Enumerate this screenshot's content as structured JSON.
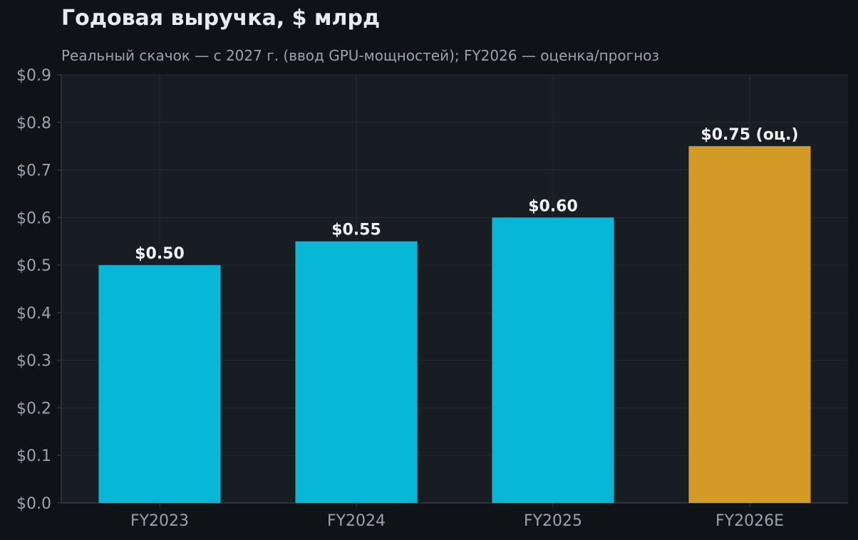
{
  "chart_data": {
    "type": "bar",
    "title": "Годовая выручка, $ млрд",
    "subtitle": "Реальный скачок — с 2027 г. (ввод GPU-мощностей); FY2026 — оценка/прогноз",
    "xlabel": "",
    "ylabel": "",
    "categories": [
      "FY2023",
      "FY2024",
      "FY2025",
      "FY2026E"
    ],
    "values": [
      0.5,
      0.55,
      0.6,
      0.75
    ],
    "value_labels": [
      "$0.50",
      "$0.55",
      "$0.60",
      "$0.75 (оц.)"
    ],
    "bar_colors": [
      "#08b6d6",
      "#08b6d6",
      "#08b6d6",
      "#d39a25"
    ],
    "ylim": [
      0,
      0.9
    ],
    "yticks": [
      0,
      0.1,
      0.2,
      0.3,
      0.4,
      0.5,
      0.6,
      0.7,
      0.8,
      0.9
    ],
    "ytick_labels": [
      "$0.0",
      "$0.1",
      "$0.2",
      "$0.3",
      "$0.4",
      "$0.5",
      "$0.6",
      "$0.7",
      "$0.8",
      "$0.9"
    ],
    "grid": true,
    "colors": {
      "background": "#0f1318",
      "plot_background": "#181c23",
      "grid": "#262b33",
      "axis": "#3a404a"
    }
  }
}
